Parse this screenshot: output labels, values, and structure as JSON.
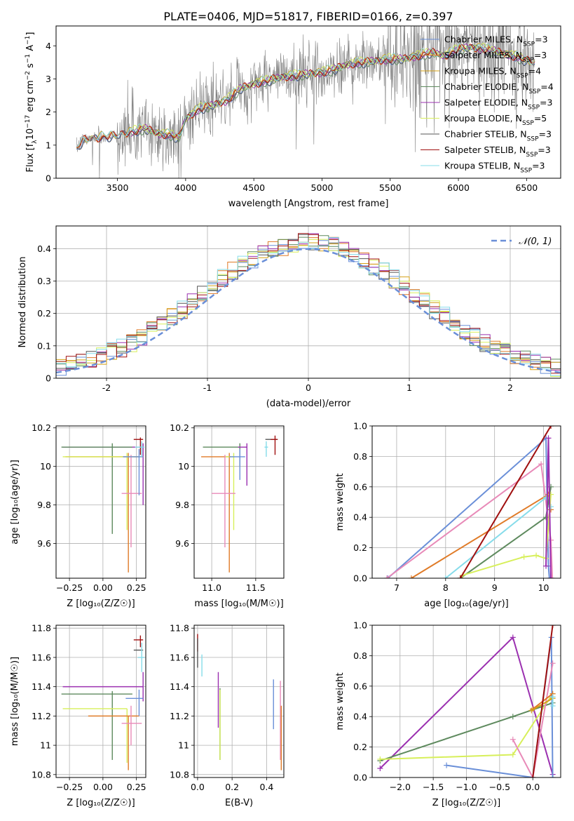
{
  "figure_title": "PLATE=0406, MJD=51817, FIBERID=0166, z=0.397",
  "colors": {
    "chabrier_miles": "#6a8fd8",
    "salpeter_miles": "#e07b28",
    "kroupa_miles": "#d4a017",
    "chabrier_elodie": "#5e8a5e",
    "salpeter_elodie": "#9b30b0",
    "kroupa_elodie": "#d7ef5a",
    "chabrier_stelib": "#555555",
    "salpeter_stelib": "#a01010",
    "kroupa_stelib": "#86dcea",
    "extra_pink": "#e88ab8",
    "data_gray": "#808080",
    "normal_curve": "#6a8fd8"
  },
  "chart_data": [
    {
      "id": "spectrum",
      "type": "line",
      "xlabel": "wavelength [Angstrom, rest frame]",
      "ylabel": "Flux [f_λ 10^-17 erg cm^-2 s^-1 A^-1]",
      "xlim": [
        3050,
        6750
      ],
      "ylim": [
        0,
        4.6
      ],
      "xticks": [
        3500,
        4000,
        4500,
        5000,
        5500,
        6000,
        6500
      ],
      "yticks": [
        0,
        1,
        2,
        3,
        4
      ],
      "legend_position": "upper right",
      "legend": [
        {
          "key": "chabrier_miles",
          "label": "Chabrier MILES, N",
          "sub": "SSP",
          "tail": "=3"
        },
        {
          "key": "salpeter_miles",
          "label": "Salpeter MILES, N",
          "sub": "SSP",
          "tail": "=3"
        },
        {
          "key": "kroupa_miles",
          "label": "Kroupa MILES, N",
          "sub": "SSP",
          "tail": "=4"
        },
        {
          "key": "chabrier_elodie",
          "label": "Chabrier ELODIE, N",
          "sub": "SSP",
          "tail": "=4"
        },
        {
          "key": "salpeter_elodie",
          "label": "Salpeter ELODIE, N",
          "sub": "SSP",
          "tail": "=3"
        },
        {
          "key": "kroupa_elodie",
          "label": "Kroupa ELODIE, N",
          "sub": "SSP",
          "tail": "=5"
        },
        {
          "key": "chabrier_stelib",
          "label": "Chabrier STELIB, N",
          "sub": "SSP",
          "tail": "=3"
        },
        {
          "key": "salpeter_stelib",
          "label": "Salpeter STELIB, N",
          "sub": "SSP",
          "tail": "=3"
        },
        {
          "key": "kroupa_stelib",
          "label": "Kroupa STELIB, N",
          "sub": "SSP",
          "tail": "=3"
        }
      ],
      "model_continuum": {
        "x": [
          3200,
          3250,
          3300,
          3400,
          3500,
          3600,
          3700,
          3800,
          3900,
          3950,
          4000,
          4100,
          4200,
          4300,
          4400,
          4500,
          4600,
          4700,
          4800,
          4900,
          5000,
          5100,
          5200,
          5300,
          5400,
          5500,
          5600,
          5700,
          5800,
          5900,
          6000,
          6100,
          6200,
          6300,
          6400,
          6500,
          6550
        ],
        "y": [
          0.9,
          1.15,
          1.2,
          1.25,
          1.3,
          1.4,
          1.5,
          1.35,
          1.3,
          1.2,
          1.8,
          2.1,
          2.2,
          2.35,
          2.7,
          2.85,
          2.95,
          3.05,
          3.1,
          3.15,
          3.2,
          3.3,
          3.45,
          3.5,
          3.55,
          3.6,
          3.6,
          3.7,
          3.8,
          3.7,
          3.9,
          3.95,
          3.9,
          3.8,
          3.7,
          3.55,
          3.5
        ]
      },
      "noise_sigma": [
        {
          "x0": 3200,
          "x1": 3500,
          "sigma": 0.12
        },
        {
          "x0": 3500,
          "x1": 4000,
          "sigma": 0.55
        },
        {
          "x0": 4000,
          "x1": 4600,
          "sigma": 0.4
        },
        {
          "x0": 4600,
          "x1": 5500,
          "sigma": 0.45
        },
        {
          "x0": 5500,
          "x1": 6560,
          "sigma": 0.75
        }
      ]
    },
    {
      "id": "residuals",
      "type": "histogram",
      "xlabel": "(data-model)/error",
      "ylabel": "Normed distribution",
      "xlim": [
        -2.5,
        2.5
      ],
      "ylim": [
        0,
        0.47
      ],
      "xticks": [
        -2,
        -1,
        0,
        1,
        2
      ],
      "yticks": [
        0,
        0.1,
        0.2,
        0.3,
        0.4
      ],
      "bin_width": 0.1,
      "legend_label": "𝒩(0, 1)",
      "legend_position": "upper right",
      "grid": true
    },
    {
      "id": "age_vs_Z",
      "type": "errorbar",
      "xlabel": "Z [log₁₀(Z/Z☉)]",
      "ylabel": "age  [log₁₀(age/yr)]",
      "xlim": [
        -0.35,
        0.32
      ],
      "ylim": [
        9.42,
        10.21
      ],
      "xticks": [
        -0.25,
        0.0,
        0.25
      ],
      "xticklabels": [
        "−0.25",
        "0.00",
        "0.25"
      ],
      "yticks": [
        9.6,
        9.8,
        10.0,
        10.2
      ],
      "grid": true,
      "points": [
        {
          "key": "salpeter_elodie",
          "x": 0.3,
          "xerr_lo": 0.6,
          "xerr_hi": 0,
          "y": 10.1,
          "yerr_lo": 0.3,
          "yerr_hi": 0.02
        },
        {
          "key": "chabrier_elodie",
          "x": 0.07,
          "xerr_lo": 0.38,
          "xerr_hi": 0.15,
          "y": 10.1,
          "yerr_lo": 0.45,
          "yerr_hi": 0.02
        },
        {
          "key": "salpeter_miles",
          "x": 0.19,
          "xerr_lo": 0.47,
          "xerr_hi": 0.08,
          "y": 10.05,
          "yerr_lo": 0.6,
          "yerr_hi": 0.02
        },
        {
          "key": "kroupa_elodie",
          "x": 0.18,
          "xerr_lo": 0.48,
          "xerr_hi": 0.12,
          "y": 10.05,
          "yerr_lo": 0.38,
          "yerr_hi": 0.02
        },
        {
          "key": "extra_pink",
          "x": 0.21,
          "xerr_lo": 0.07,
          "xerr_hi": 0.08,
          "y": 9.86,
          "yerr_lo": 0.28,
          "yerr_hi": 0.2
        },
        {
          "key": "chabrier_miles",
          "x": 0.27,
          "xerr_lo": 0.12,
          "xerr_hi": 0.03,
          "y": 10.05,
          "yerr_lo": 0.2,
          "yerr_hi": 0.04
        },
        {
          "key": "salpeter_stelib",
          "x": 0.28,
          "xerr_lo": 0.05,
          "xerr_hi": 0.02,
          "y": 10.14,
          "yerr_lo": 0.08,
          "yerr_hi": 0.01
        },
        {
          "key": "kroupa_stelib",
          "x": 0.29,
          "xerr_lo": 0.05,
          "xerr_hi": 0.02,
          "y": 10.1,
          "yerr_lo": 0.05,
          "yerr_hi": 0.03
        }
      ]
    },
    {
      "id": "age_vs_mass",
      "type": "errorbar",
      "xlabel": "mass [log₁₀(M/M☉)]",
      "xlim": [
        10.8,
        11.82
      ],
      "ylim": [
        9.42,
        10.21
      ],
      "xticks": [
        11.0,
        11.5
      ],
      "xticklabels": [
        "11.0",
        "11.5"
      ],
      "yticks": [
        9.6,
        9.8,
        10.0,
        10.2
      ],
      "grid": true,
      "points": [
        {
          "key": "chabrier_elodie",
          "x": 11.32,
          "xerr_lo": 0.42,
          "xerr_hi": 0.0,
          "y": 10.1,
          "yerr_lo": 0.1,
          "yerr_hi": 0.02
        },
        {
          "key": "salpeter_elodie",
          "x": 11.4,
          "xerr_lo": 0.1,
          "xerr_hi": 0.0,
          "y": 10.1,
          "yerr_lo": 0.2,
          "yerr_hi": 0.02
        },
        {
          "key": "salpeter_miles",
          "x": 11.2,
          "xerr_lo": 0.32,
          "xerr_hi": 0.02,
          "y": 10.05,
          "yerr_lo": 0.6,
          "yerr_hi": 0.02
        },
        {
          "key": "kroupa_elodie",
          "x": 11.25,
          "xerr_lo": 0.1,
          "xerr_hi": 0.0,
          "y": 10.05,
          "yerr_lo": 0.38,
          "yerr_hi": 0.02
        },
        {
          "key": "extra_pink",
          "x": 11.15,
          "xerr_lo": 0.15,
          "xerr_hi": 0.12,
          "y": 9.86,
          "yerr_lo": 0.28,
          "yerr_hi": 0.2
        },
        {
          "key": "chabrier_miles",
          "x": 11.32,
          "xerr_lo": 0.12,
          "xerr_hi": 0.06,
          "y": 10.05,
          "yerr_lo": 0.12,
          "yerr_hi": 0.04
        },
        {
          "key": "chabrier_stelib",
          "x": 11.65,
          "xerr_lo": 0.04,
          "xerr_hi": 0.1,
          "y": 10.14,
          "yerr_lo": 0.0,
          "yerr_hi": 0.0
        },
        {
          "key": "salpeter_stelib",
          "x": 11.72,
          "xerr_lo": 0.05,
          "xerr_hi": 0.03,
          "y": 10.14,
          "yerr_lo": 0.08,
          "yerr_hi": 0.02
        },
        {
          "key": "kroupa_stelib",
          "x": 11.62,
          "xerr_lo": 0.02,
          "xerr_hi": 0.02,
          "y": 10.1,
          "yerr_lo": 0.05,
          "yerr_hi": 0.03
        }
      ]
    },
    {
      "id": "weight_vs_age",
      "type": "line",
      "xlabel": "age  [log₁₀(age/yr)]",
      "ylabel": "mass weight",
      "xlim": [
        6.5,
        10.35
      ],
      "ylim": [
        0,
        1.0
      ],
      "xticks": [
        7,
        8,
        9,
        10
      ],
      "yticks": [
        0,
        0.2,
        0.4,
        0.6,
        0.8,
        1.0
      ],
      "yticklabels": [
        "0.0",
        "0.2",
        "0.4",
        "0.6",
        "0.8",
        "1.0"
      ],
      "grid": true,
      "series": [
        {
          "key": "chabrier_miles",
          "x": [
            6.82,
            10.05,
            10.1,
            10.12
          ],
          "y": [
            0.0,
            0.92,
            0.08,
            0.0
          ]
        },
        {
          "key": "extra_pink",
          "x": [
            6.8,
            9.95,
            10.15,
            10.18
          ],
          "y": [
            0.0,
            0.75,
            0.25,
            0.0
          ]
        },
        {
          "key": "salpeter_miles",
          "x": [
            7.3,
            10.1,
            10.15
          ],
          "y": [
            0.0,
            0.55,
            0.45
          ]
        },
        {
          "key": "kroupa_stelib",
          "x": [
            8.0,
            10.05,
            10.15
          ],
          "y": [
            0.0,
            0.53,
            0.47
          ]
        },
        {
          "key": "chabrier_elodie",
          "x": [
            8.3,
            10.05,
            10.15
          ],
          "y": [
            0.0,
            0.4,
            0.6
          ]
        },
        {
          "key": "kroupa_elodie",
          "x": [
            8.35,
            9.6,
            9.85,
            10.05,
            10.15
          ],
          "y": [
            0.02,
            0.14,
            0.15,
            0.13,
            0.55
          ]
        },
        {
          "key": "salpeter_elodie",
          "x": [
            10.05,
            10.1,
            10.15
          ],
          "y": [
            0.08,
            0.92,
            0.0
          ]
        },
        {
          "key": "salpeter_stelib",
          "x": [
            8.3,
            10.15
          ],
          "y": [
            0.0,
            1.0
          ]
        }
      ]
    },
    {
      "id": "mass_vs_Z",
      "type": "errorbar",
      "xlabel": "Z [log₁₀(Z/Z☉)]",
      "ylabel": "mass [log₁₀(M/M☉)]",
      "xlim": [
        -0.35,
        0.32
      ],
      "ylim": [
        10.78,
        11.82
      ],
      "xticks": [
        -0.25,
        0.0,
        0.25
      ],
      "xticklabels": [
        "−0.25",
        "0.00",
        "0.25"
      ],
      "yticks": [
        10.8,
        11.0,
        11.2,
        11.4,
        11.6,
        11.8
      ],
      "grid": true,
      "points": [
        {
          "key": "salpeter_elodie",
          "x": 0.3,
          "xerr_lo": 0.6,
          "xerr_hi": 0,
          "y": 11.4,
          "yerr_lo": 0.1,
          "yerr_hi": 0.1
        },
        {
          "key": "chabrier_elodie",
          "x": 0.07,
          "xerr_lo": 0.38,
          "xerr_hi": 0.15,
          "y": 11.35,
          "yerr_lo": 0.45,
          "yerr_hi": 0.02
        },
        {
          "key": "kroupa_elodie",
          "x": 0.18,
          "xerr_lo": 0.48,
          "xerr_hi": 0.0,
          "y": 11.25,
          "yerr_lo": 0.37,
          "yerr_hi": 0.0
        },
        {
          "key": "salpeter_miles",
          "x": 0.19,
          "xerr_lo": 0.3,
          "xerr_hi": 0.08,
          "y": 11.2,
          "yerr_lo": 0.37,
          "yerr_hi": 0.0
        },
        {
          "key": "extra_pink",
          "x": 0.21,
          "xerr_lo": 0.07,
          "xerr_hi": 0.08,
          "y": 11.15,
          "yerr_lo": 0.15,
          "yerr_hi": 0.12
        },
        {
          "key": "chabrier_miles",
          "x": 0.27,
          "xerr_lo": 0.1,
          "xerr_hi": 0.03,
          "y": 11.32,
          "yerr_lo": 0.12,
          "yerr_hi": 0.06
        },
        {
          "key": "salpeter_stelib",
          "x": 0.28,
          "xerr_lo": 0.05,
          "xerr_hi": 0.02,
          "y": 11.72,
          "yerr_lo": 0.05,
          "yerr_hi": 0.03
        },
        {
          "key": "chabrier_stelib",
          "x": 0.28,
          "xerr_lo": 0.05,
          "xerr_hi": 0.02,
          "y": 11.65,
          "yerr_lo": 0.0,
          "yerr_hi": 0.0
        },
        {
          "key": "kroupa_stelib",
          "x": 0.29,
          "xerr_lo": 0.03,
          "xerr_hi": 0.02,
          "y": 11.6,
          "yerr_lo": 0.1,
          "yerr_hi": 0.1
        }
      ]
    },
    {
      "id": "mass_vs_ebv",
      "type": "errorbar",
      "xlabel": "E(B-V)",
      "xlim": [
        -0.02,
        0.5
      ],
      "ylim": [
        10.78,
        11.82
      ],
      "xticks": [
        0.0,
        0.2,
        0.4
      ],
      "xticklabels": [
        "0.0",
        "0.2",
        "0.4"
      ],
      "yticks": [
        10.8,
        11.0,
        11.2,
        11.4,
        11.6,
        11.8
      ],
      "grid": true,
      "points": [
        {
          "key": "salpeter_stelib",
          "x": 0.0,
          "y": 11.7,
          "yerr_lo": 0.06,
          "yerr_hi": 0.06
        },
        {
          "key": "chabrier_stelib",
          "x": 0.0,
          "y": 11.63,
          "yerr_lo": 0.1,
          "yerr_hi": 0.1
        },
        {
          "key": "kroupa_stelib",
          "x": 0.025,
          "y": 11.55,
          "yerr_lo": 0.08,
          "yerr_hi": 0.07
        },
        {
          "key": "salpeter_elodie",
          "x": 0.12,
          "y": 11.3,
          "yerr_lo": 0.18,
          "yerr_hi": 0.2
        },
        {
          "key": "chabrier_elodie",
          "x": 0.13,
          "y": 11.25,
          "yerr_lo": 0.35,
          "yerr_hi": 0.14
        },
        {
          "key": "kroupa_elodie",
          "x": 0.13,
          "y": 11.2,
          "yerr_lo": 0.3,
          "yerr_hi": 0.18
        },
        {
          "key": "chabrier_miles",
          "x": 0.44,
          "y": 11.27,
          "yerr_lo": 0.16,
          "yerr_hi": 0.18
        },
        {
          "key": "extra_pink",
          "x": 0.48,
          "y": 11.2,
          "yerr_lo": 0.3,
          "yerr_hi": 0.24
        },
        {
          "key": "salpeter_miles",
          "x": 0.485,
          "y": 11.05,
          "yerr_lo": 0.22,
          "yerr_hi": 0.22
        }
      ]
    },
    {
      "id": "weight_vs_Z",
      "type": "line",
      "xlabel": "Z [log₁₀(Z/Z☉)]",
      "ylabel": "mass weight",
      "xlim": [
        -2.42,
        0.42
      ],
      "ylim": [
        0,
        1.0
      ],
      "xticks": [
        -2.0,
        -1.5,
        -1.0,
        -0.5,
        0.0
      ],
      "xticklabels": [
        "−2.0",
        "−1.5",
        "−1.0",
        "−0.5",
        "0.0"
      ],
      "yticks": [
        0,
        0.2,
        0.4,
        0.6,
        0.8,
        1.0
      ],
      "yticklabels": [
        "0.0",
        "0.2",
        "0.4",
        "0.6",
        "0.8",
        "1.0"
      ],
      "grid": true,
      "series": [
        {
          "key": "salpeter_elodie",
          "x": [
            -2.3,
            -0.3,
            0.3
          ],
          "y": [
            0.06,
            0.92,
            0.02
          ]
        },
        {
          "key": "chabrier_elodie",
          "x": [
            -2.3,
            -0.3,
            0.3
          ],
          "y": [
            0.11,
            0.4,
            0.49
          ]
        },
        {
          "key": "kroupa_elodie",
          "x": [
            -2.3,
            -0.3,
            0.3
          ],
          "y": [
            0.12,
            0.15,
            0.55
          ]
        },
        {
          "key": "chabrier_miles",
          "x": [
            -1.3,
            0.0,
            0.28,
            0.3
          ],
          "y": [
            0.08,
            0.0,
            0.92,
            0.0
          ]
        },
        {
          "key": "extra_pink",
          "x": [
            -0.3,
            0.0,
            0.3
          ],
          "y": [
            0.25,
            0.0,
            0.75
          ]
        },
        {
          "key": "salpeter_miles",
          "x": [
            0.0,
            0.3
          ],
          "y": [
            0.45,
            0.55
          ]
        },
        {
          "key": "kroupa_miles",
          "x": [
            -0.02,
            0.3
          ],
          "y": [
            0.44,
            0.52
          ]
        },
        {
          "key": "kroupa_stelib",
          "x": [
            0.3,
            0.3
          ],
          "y": [
            0.53,
            0.47
          ]
        },
        {
          "key": "salpeter_stelib",
          "x": [
            0.0,
            0.3
          ],
          "y": [
            0.0,
            1.0
          ]
        }
      ]
    }
  ]
}
